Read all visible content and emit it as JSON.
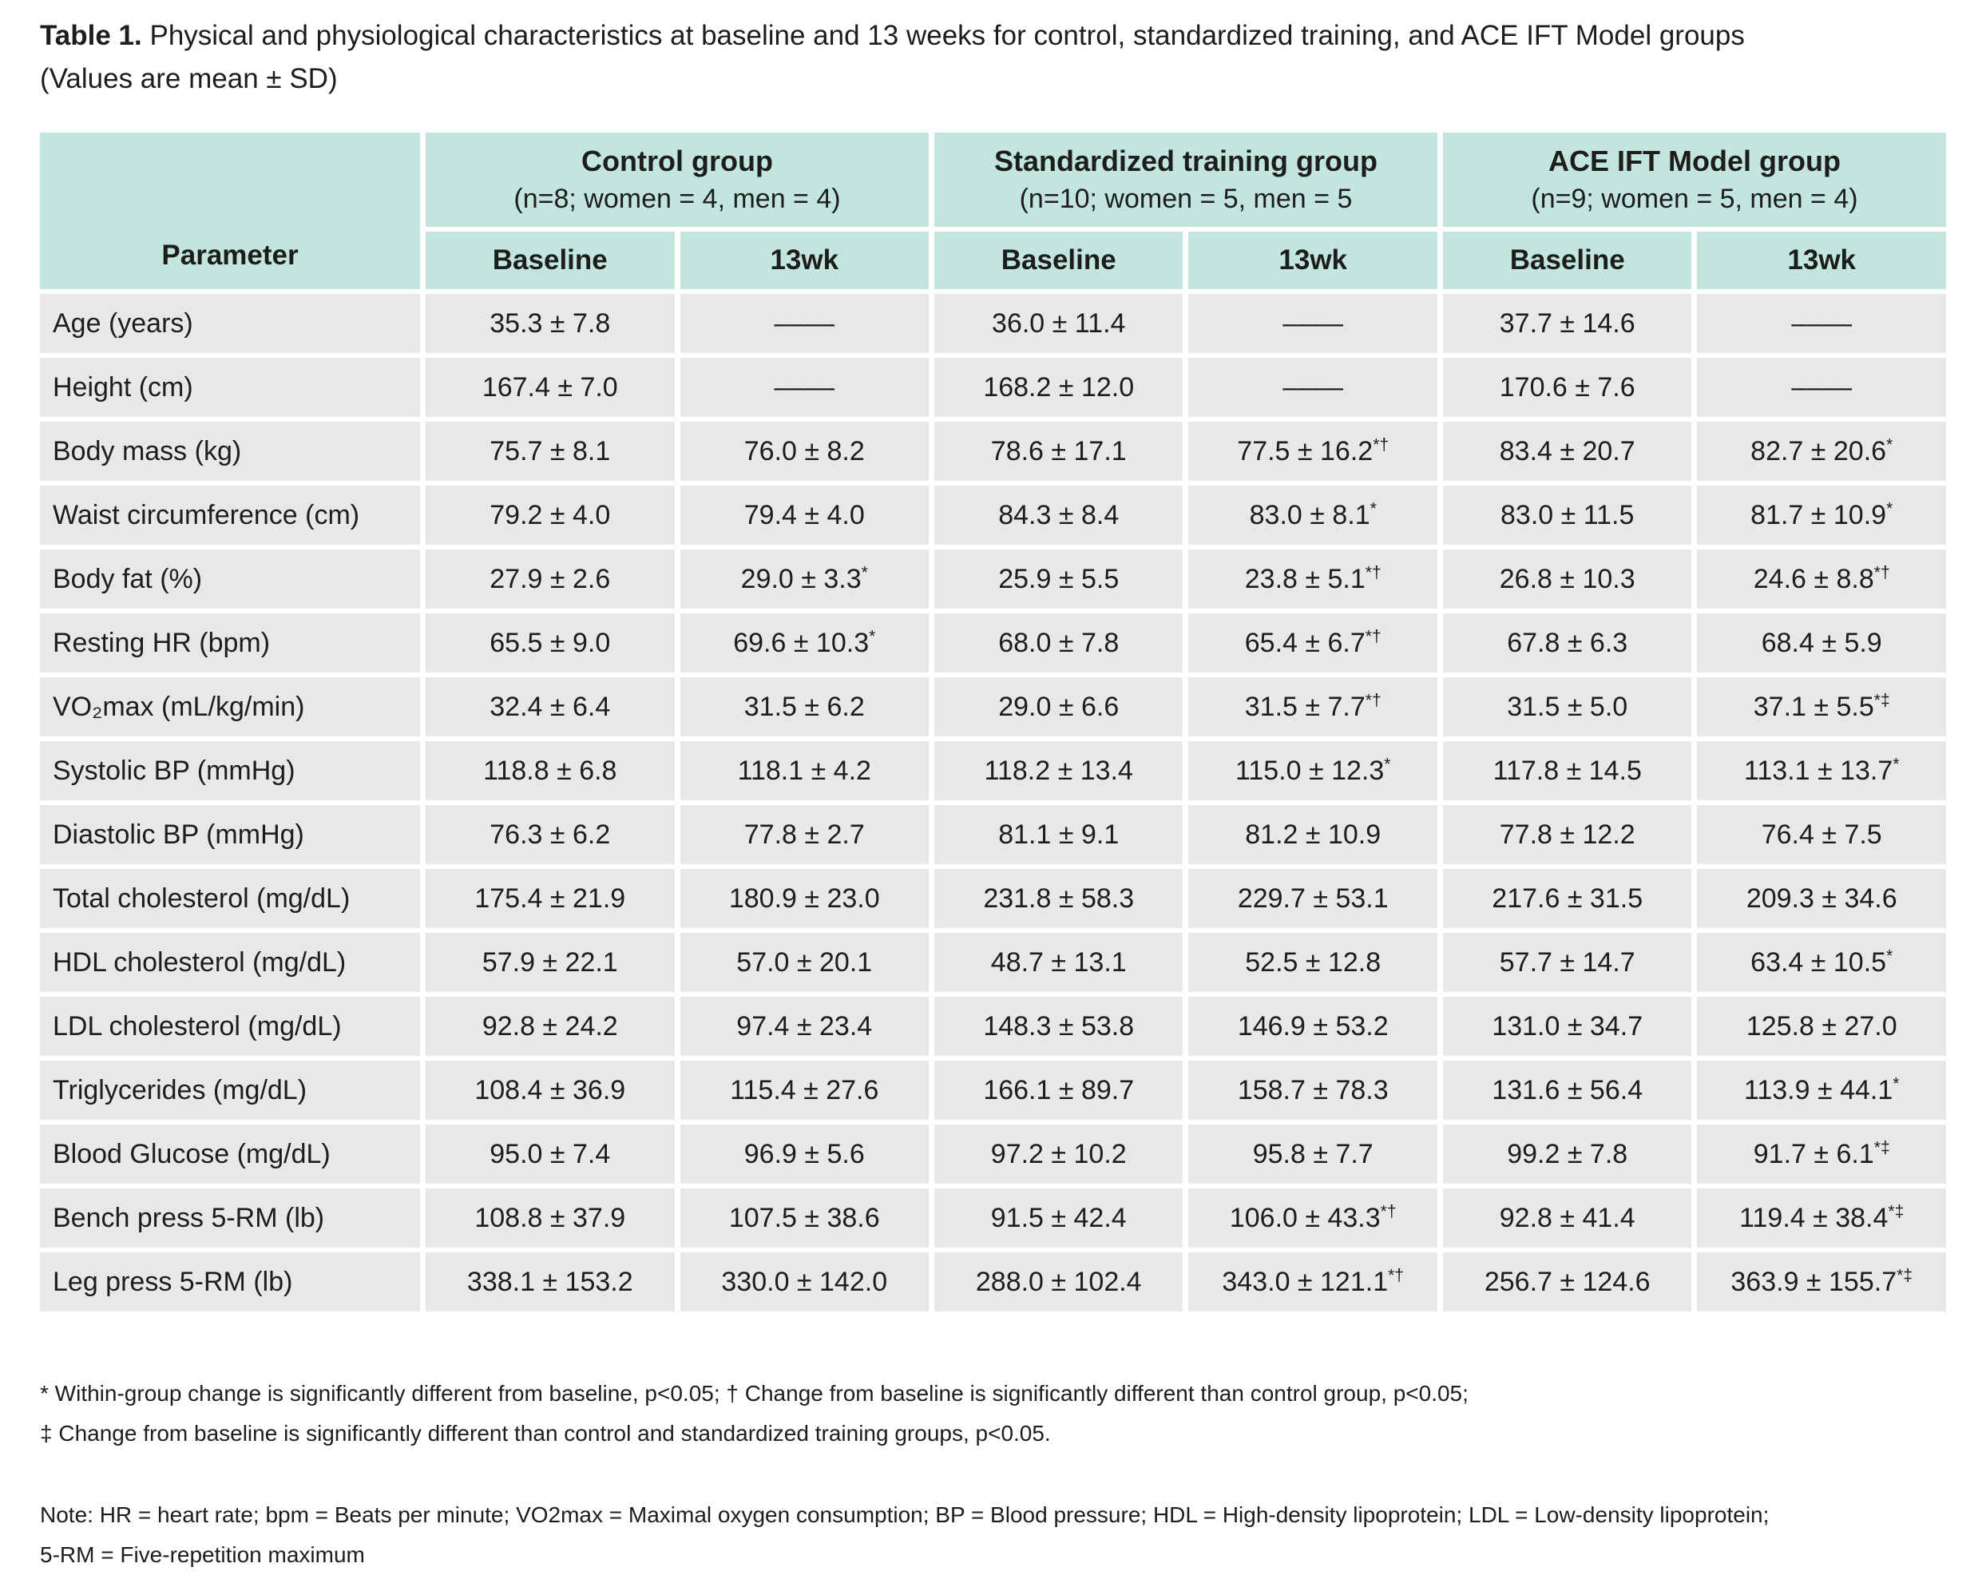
{
  "title": {
    "label": "Table 1.",
    "text": "Physical and physiological characteristics at baseline and 13 weeks for control, standardized training, and ACE IFT Model groups",
    "subtitle": "(Values are mean ± SD)"
  },
  "table": {
    "parameter_header": "Parameter",
    "groups": [
      {
        "name": "Control group",
        "subtitle": "(n=8; women = 4, men = 4)"
      },
      {
        "name": "Standardized training group",
        "subtitle": "(n=10; women = 5, men = 5"
      },
      {
        "name": "ACE IFT Model group",
        "subtitle": "(n=9; women = 5, men = 4)"
      }
    ],
    "subheaders": [
      "Baseline",
      "13wk",
      "Baseline",
      "13wk",
      "Baseline",
      "13wk"
    ],
    "rows": [
      {
        "label": "Age (years)",
        "cells": [
          "35.3 ± 7.8",
          "––––",
          "36.0 ± 11.4",
          "––––",
          "37.7 ± 14.6",
          "––––"
        ]
      },
      {
        "label": "Height (cm)",
        "cells": [
          "167.4 ± 7.0",
          "––––",
          "168.2 ± 12.0",
          "––––",
          "170.6 ± 7.6",
          "––––"
        ]
      },
      {
        "label": "Body mass (kg)",
        "cells": [
          "75.7 ± 8.1",
          "76.0 ± 8.2",
          "78.6 ± 17.1",
          "77.5 ± 16.2*†",
          "83.4 ± 20.7",
          "82.7 ± 20.6*"
        ]
      },
      {
        "label": "Waist circumference (cm)",
        "cells": [
          "79.2 ± 4.0",
          "79.4 ± 4.0",
          "84.3 ± 8.4",
          "83.0 ± 8.1*",
          "83.0 ± 11.5",
          "81.7 ± 10.9*"
        ]
      },
      {
        "label": "Body fat (%)",
        "cells": [
          "27.9 ± 2.6",
          "29.0 ± 3.3*",
          "25.9 ± 5.5",
          "23.8 ± 5.1*†",
          "26.8 ± 10.3",
          "24.6 ± 8.8*†"
        ]
      },
      {
        "label": "Resting HR (bpm)",
        "cells": [
          "65.5 ± 9.0",
          "69.6 ± 10.3*",
          "68.0 ± 7.8",
          "65.4 ± 6.7*†",
          "67.8 ± 6.3",
          "68.4 ± 5.9"
        ]
      },
      {
        "label": "VO₂max (mL/kg/min)",
        "cells": [
          "32.4 ± 6.4",
          "31.5 ± 6.2",
          "29.0 ± 6.6",
          "31.5 ± 7.7*†",
          "31.5 ± 5.0",
          "37.1 ± 5.5*‡"
        ]
      },
      {
        "label": "Systolic BP (mmHg)",
        "cells": [
          "118.8 ± 6.8",
          "118.1 ± 4.2",
          "118.2 ± 13.4",
          "115.0 ± 12.3*",
          "117.8 ± 14.5",
          "113.1 ± 13.7*"
        ]
      },
      {
        "label": "Diastolic BP (mmHg)",
        "cells": [
          "76.3 ± 6.2",
          "77.8 ± 2.7",
          "81.1 ± 9.1",
          "81.2 ± 10.9",
          "77.8 ± 12.2",
          "76.4 ± 7.5"
        ]
      },
      {
        "label": "Total cholesterol (mg/dL)",
        "cells": [
          "175.4 ± 21.9",
          "180.9 ± 23.0",
          "231.8 ± 58.3",
          "229.7 ± 53.1",
          "217.6 ± 31.5",
          "209.3 ± 34.6"
        ]
      },
      {
        "label": "HDL cholesterol (mg/dL)",
        "cells": [
          "57.9 ± 22.1",
          "57.0 ± 20.1",
          "48.7 ± 13.1",
          "52.5 ± 12.8",
          "57.7 ± 14.7",
          "63.4 ± 10.5*"
        ]
      },
      {
        "label": "LDL cholesterol (mg/dL)",
        "cells": [
          "92.8 ± 24.2",
          "97.4 ± 23.4",
          "148.3 ± 53.8",
          "146.9 ± 53.2",
          "131.0 ± 34.7",
          "125.8 ± 27.0"
        ]
      },
      {
        "label": "Triglycerides (mg/dL)",
        "cells": [
          "108.4 ± 36.9",
          "115.4 ± 27.6",
          "166.1 ± 89.7",
          "158.7 ± 78.3",
          "131.6 ± 56.4",
          "113.9 ± 44.1*"
        ]
      },
      {
        "label": "Blood Glucose (mg/dL)",
        "cells": [
          "95.0 ± 7.4",
          "96.9 ± 5.6",
          "97.2 ± 10.2",
          "95.8 ± 7.7",
          "99.2 ± 7.8",
          "91.7 ± 6.1*‡"
        ]
      },
      {
        "label": "Bench press 5-RM (lb)",
        "cells": [
          "108.8 ± 37.9",
          "107.5 ± 38.6",
          "91.5 ± 42.4",
          "106.0 ± 43.3*†",
          "92.8 ± 41.4",
          "119.4 ± 38.4*‡"
        ]
      },
      {
        "label": "Leg press 5-RM (lb)",
        "cells": [
          "338.1 ± 153.2",
          "330.0 ± 142.0",
          "288.0 ± 102.4",
          "343.0 ± 121.1*†",
          "256.7 ± 124.6",
          "363.9 ± 155.7*‡"
        ]
      }
    ]
  },
  "footnotes": [
    "* Within-group change is significantly different from baseline, p<0.05; † Change from baseline is significantly different than control group, p<0.05;",
    "‡ Change from baseline is significantly different than control and standardized training groups, p<0.05."
  ],
  "note_lines": [
    "Note: HR = heart rate; bpm = Beats per minute; VO2max = Maximal oxygen consumption; BP = Blood pressure; HDL = High-density lipoprotein; LDL = Low-density lipoprotein;",
    "5-RM = Five-repetition maximum"
  ],
  "colors": {
    "header_bg": "#c2e5de",
    "row_bg": "#e8e8e8",
    "text": "#1d1d1d"
  }
}
